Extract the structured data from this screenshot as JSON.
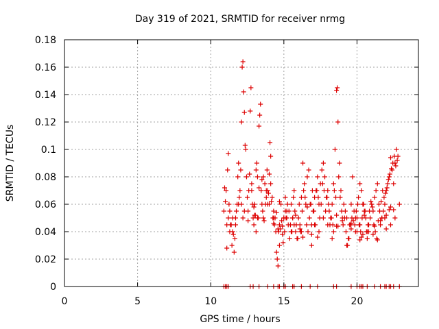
{
  "chart_data": {
    "type": "scatter",
    "title": "Day 319 of 2021, SRMTID for receiver nrmg",
    "xlabel": "GPS time / hours",
    "ylabel": "SRMTID / TECUs",
    "xlim": [
      0,
      24.2
    ],
    "ylim": [
      0,
      0.18
    ],
    "xticks": [
      0,
      5,
      10,
      15,
      20
    ],
    "xtick_labels": [
      "0",
      "5",
      "10",
      "15",
      "20"
    ],
    "yticks": [
      0,
      0.02,
      0.04,
      0.06,
      0.08,
      0.1,
      0.12,
      0.14,
      0.16,
      0.18
    ],
    "ytick_labels": [
      "0",
      "0.02",
      "0.04",
      "0.06",
      "0.08",
      "0.1",
      "0.12",
      "0.14",
      "0.16",
      "0.18"
    ],
    "grid": true,
    "marker": "+",
    "color": "#dd0000",
    "series": [
      {
        "name": "SRMTID",
        "x": [
          10.95,
          11.05,
          11.15,
          11.2,
          11.3,
          11.35,
          11.45,
          11.5,
          11.55,
          11.6,
          11.7,
          11.8,
          11.85,
          11.9,
          11.95,
          12.05,
          12.1,
          12.15,
          12.2,
          12.25,
          12.3,
          12.35,
          12.45,
          12.5,
          12.55,
          12.6,
          12.7,
          12.75,
          12.8,
          12.9,
          12.95,
          13.0,
          13.05,
          13.1,
          13.15,
          13.2,
          13.3,
          13.35,
          13.4,
          13.45,
          13.5,
          13.55,
          13.6,
          13.7,
          13.8,
          13.85,
          13.9,
          14.0,
          14.05,
          14.1,
          14.2,
          14.3,
          14.35,
          14.4,
          14.45,
          14.5,
          14.55,
          14.6,
          14.7,
          14.75,
          14.8,
          14.85,
          14.9,
          14.95,
          15.0,
          15.1,
          15.2,
          15.3,
          15.4,
          15.5,
          15.6,
          15.7,
          15.8,
          15.9,
          16.0,
          16.1,
          16.2,
          16.3,
          16.4,
          16.5,
          16.6,
          16.7,
          16.8,
          16.9,
          17.0,
          17.1,
          17.2,
          17.3,
          17.4,
          17.5,
          17.6,
          17.7,
          17.8,
          17.9,
          18.0,
          18.1,
          18.2,
          18.3,
          18.4,
          18.5,
          18.6,
          18.65,
          18.7,
          18.8,
          18.9,
          19.0,
          19.1,
          19.2,
          19.3,
          19.4,
          19.5,
          19.6,
          19.7,
          19.8,
          19.9,
          20.0,
          20.1,
          20.2,
          20.3,
          20.4,
          20.5,
          20.6,
          20.7,
          20.8,
          20.9,
          21.0,
          21.1,
          21.2,
          21.3,
          21.4,
          21.5,
          21.6,
          21.7,
          21.8,
          21.9,
          22.0,
          22.1,
          22.2,
          22.3,
          22.4,
          22.5,
          22.6,
          22.7,
          22.8,
          11.25,
          11.4,
          11.65,
          11.75,
          12.0,
          12.4,
          12.65,
          12.85,
          13.25,
          13.65,
          13.75,
          13.95,
          14.15,
          14.25,
          14.65,
          15.05,
          15.15,
          15.25,
          15.35,
          15.45,
          15.55,
          15.65,
          15.75,
          15.85,
          15.95,
          16.05,
          16.15,
          16.25,
          16.35,
          16.45,
          16.55,
          16.65,
          16.75,
          16.85,
          16.95,
          17.05,
          17.15,
          17.25,
          17.35,
          17.45,
          17.55,
          17.65,
          17.75,
          17.85,
          17.95,
          18.05,
          18.15,
          18.25,
          18.35,
          18.45,
          18.55,
          18.75,
          18.85,
          18.95,
          19.05,
          19.15,
          19.25,
          19.35,
          19.45,
          19.55,
          19.65,
          19.75,
          19.85,
          19.95,
          20.05,
          20.15,
          20.25,
          20.35,
          20.45,
          20.55,
          20.65,
          20.75,
          20.85,
          20.95,
          21.05,
          21.15,
          21.25,
          21.35,
          21.45,
          21.55,
          21.65,
          21.75,
          21.85,
          21.95,
          22.05,
          22.15,
          22.25,
          22.35,
          22.45,
          22.55,
          22.65,
          22.75,
          11.1,
          11.3,
          11.5,
          11.7,
          11.9,
          12.1,
          12.2,
          12.3,
          12.55,
          12.95,
          13.1,
          13.3,
          13.5,
          13.6,
          13.8,
          14.0,
          14.1,
          14.3,
          14.5,
          14.7,
          14.9,
          15.2,
          15.5,
          15.8,
          16.1,
          16.3,
          16.6,
          16.9,
          17.1,
          17.4,
          17.7,
          18.0,
          18.3,
          18.6,
          18.7,
          19.0,
          19.3,
          19.6,
          19.9,
          20.2,
          20.5,
          20.8,
          21.1,
          21.4,
          21.7,
          22.0,
          22.3,
          22.6,
          10.9,
          11.0,
          11.1,
          11.2,
          12.8,
          13.0,
          13.2,
          13.9,
          14.3,
          14.6,
          14.7,
          15.0,
          15.1,
          15.6,
          15.7,
          16.2,
          16.9,
          17.3,
          18.4,
          18.6,
          19.6,
          20.0,
          20.2,
          20.3,
          20.4,
          20.7,
          21.2,
          21.6,
          21.9,
          22.0,
          22.2,
          22.3,
          22.5,
          22.9
        ],
        "y": [
          0.072,
          0.07,
          0.085,
          0.097,
          0.055,
          0.045,
          0.03,
          0.04,
          0.038,
          0.025,
          0.05,
          0.06,
          0.08,
          0.09,
          0.065,
          0.085,
          0.12,
          0.16,
          0.164,
          0.142,
          0.127,
          0.103,
          0.08,
          0.065,
          0.055,
          0.07,
          0.128,
          0.145,
          0.075,
          0.05,
          0.045,
          0.06,
          0.052,
          0.085,
          0.09,
          0.08,
          0.117,
          0.125,
          0.133,
          0.07,
          0.06,
          0.055,
          0.05,
          0.075,
          0.065,
          0.085,
          0.07,
          0.06,
          0.105,
          0.095,
          0.065,
          0.055,
          0.045,
          0.05,
          0.04,
          0.025,
          0.02,
          0.015,
          0.03,
          0.042,
          0.06,
          0.048,
          0.038,
          0.032,
          0.05,
          0.065,
          0.055,
          0.045,
          0.035,
          0.06,
          0.05,
          0.07,
          0.04,
          0.035,
          0.05,
          0.045,
          0.065,
          0.09,
          0.075,
          0.06,
          0.08,
          0.085,
          0.06,
          0.045,
          0.055,
          0.065,
          0.07,
          0.08,
          0.06,
          0.075,
          0.085,
          0.09,
          0.08,
          0.065,
          0.07,
          0.055,
          0.05,
          0.06,
          0.075,
          0.1,
          0.143,
          0.145,
          0.12,
          0.09,
          0.07,
          0.05,
          0.06,
          0.055,
          0.05,
          0.035,
          0.045,
          0.06,
          0.08,
          0.055,
          0.05,
          0.04,
          0.065,
          0.075,
          0.07,
          0.06,
          0.055,
          0.05,
          0.035,
          0.045,
          0.05,
          0.06,
          0.055,
          0.065,
          0.07,
          0.075,
          0.06,
          0.045,
          0.05,
          0.055,
          0.06,
          0.07,
          0.075,
          0.08,
          0.094,
          0.085,
          0.075,
          0.09,
          0.1,
          0.095,
          0.06,
          0.045,
          0.035,
          0.055,
          0.07,
          0.1,
          0.082,
          0.06,
          0.05,
          0.048,
          0.06,
          0.068,
          0.062,
          0.05,
          0.04,
          0.04,
          0.05,
          0.06,
          0.055,
          0.045,
          0.04,
          0.065,
          0.055,
          0.045,
          0.035,
          0.06,
          0.04,
          0.055,
          0.07,
          0.065,
          0.045,
          0.04,
          0.05,
          0.06,
          0.07,
          0.055,
          0.045,
          0.07,
          0.065,
          0.05,
          0.06,
          0.075,
          0.07,
          0.055,
          0.065,
          0.06,
          0.045,
          0.05,
          0.045,
          0.07,
          0.065,
          0.08,
          0.065,
          0.055,
          0.045,
          0.05,
          0.04,
          0.03,
          0.035,
          0.045,
          0.05,
          0.048,
          0.045,
          0.055,
          0.06,
          0.045,
          0.04,
          0.05,
          0.06,
          0.055,
          0.04,
          0.045,
          0.055,
          0.062,
          0.058,
          0.045,
          0.04,
          0.035,
          0.048,
          0.055,
          0.062,
          0.07,
          0.065,
          0.068,
          0.072,
          0.078,
          0.082,
          0.086,
          0.09,
          0.095,
          0.088,
          0.092,
          0.028,
          0.04,
          0.05,
          0.045,
          0.06,
          0.06,
          0.05,
          0.055,
          0.048,
          0.058,
          0.04,
          0.072,
          0.078,
          0.08,
          0.07,
          0.082,
          0.075,
          0.046,
          0.054,
          0.062,
          0.044,
          0.05,
          0.04,
          0.052,
          0.042,
          0.036,
          0.058,
          0.03,
          0.045,
          0.04,
          0.05,
          0.045,
          0.035,
          0.052,
          0.044,
          0.048,
          0.03,
          0.042,
          0.04,
          0.045,
          0.052,
          0.04,
          0.038,
          0.034,
          0.05,
          0.042,
          0.045,
          0.05,
          0.055,
          0.062,
          0.045,
          0.05,
          0.07,
          0.052,
          0.05,
          0.06,
          0.05,
          0.042,
          0.045,
          0.05,
          0.055,
          0.05,
          0.045,
          0.04,
          0.038,
          0.036,
          0.04,
          0.044,
          0.046,
          0.05,
          0.034,
          0.036,
          0.038,
          0.04,
          0.044,
          0.048,
          0.05,
          0.052,
          0.056,
          0.058,
          0.056,
          0.06
        ],
        "baseline_x": [
          10.9,
          11.0,
          11.1,
          11.2,
          12.7,
          12.9,
          13.3,
          13.9,
          14.3,
          14.6,
          14.7,
          15.0,
          15.1,
          15.6,
          15.7,
          16.2,
          16.8,
          17.3,
          18.4,
          18.6,
          19.6,
          20.0,
          20.2,
          20.3,
          20.4,
          20.7,
          21.2,
          21.6,
          21.9,
          22.0,
          22.2,
          22.3,
          22.5,
          22.9
        ],
        "baseline_y": 0
      }
    ]
  }
}
